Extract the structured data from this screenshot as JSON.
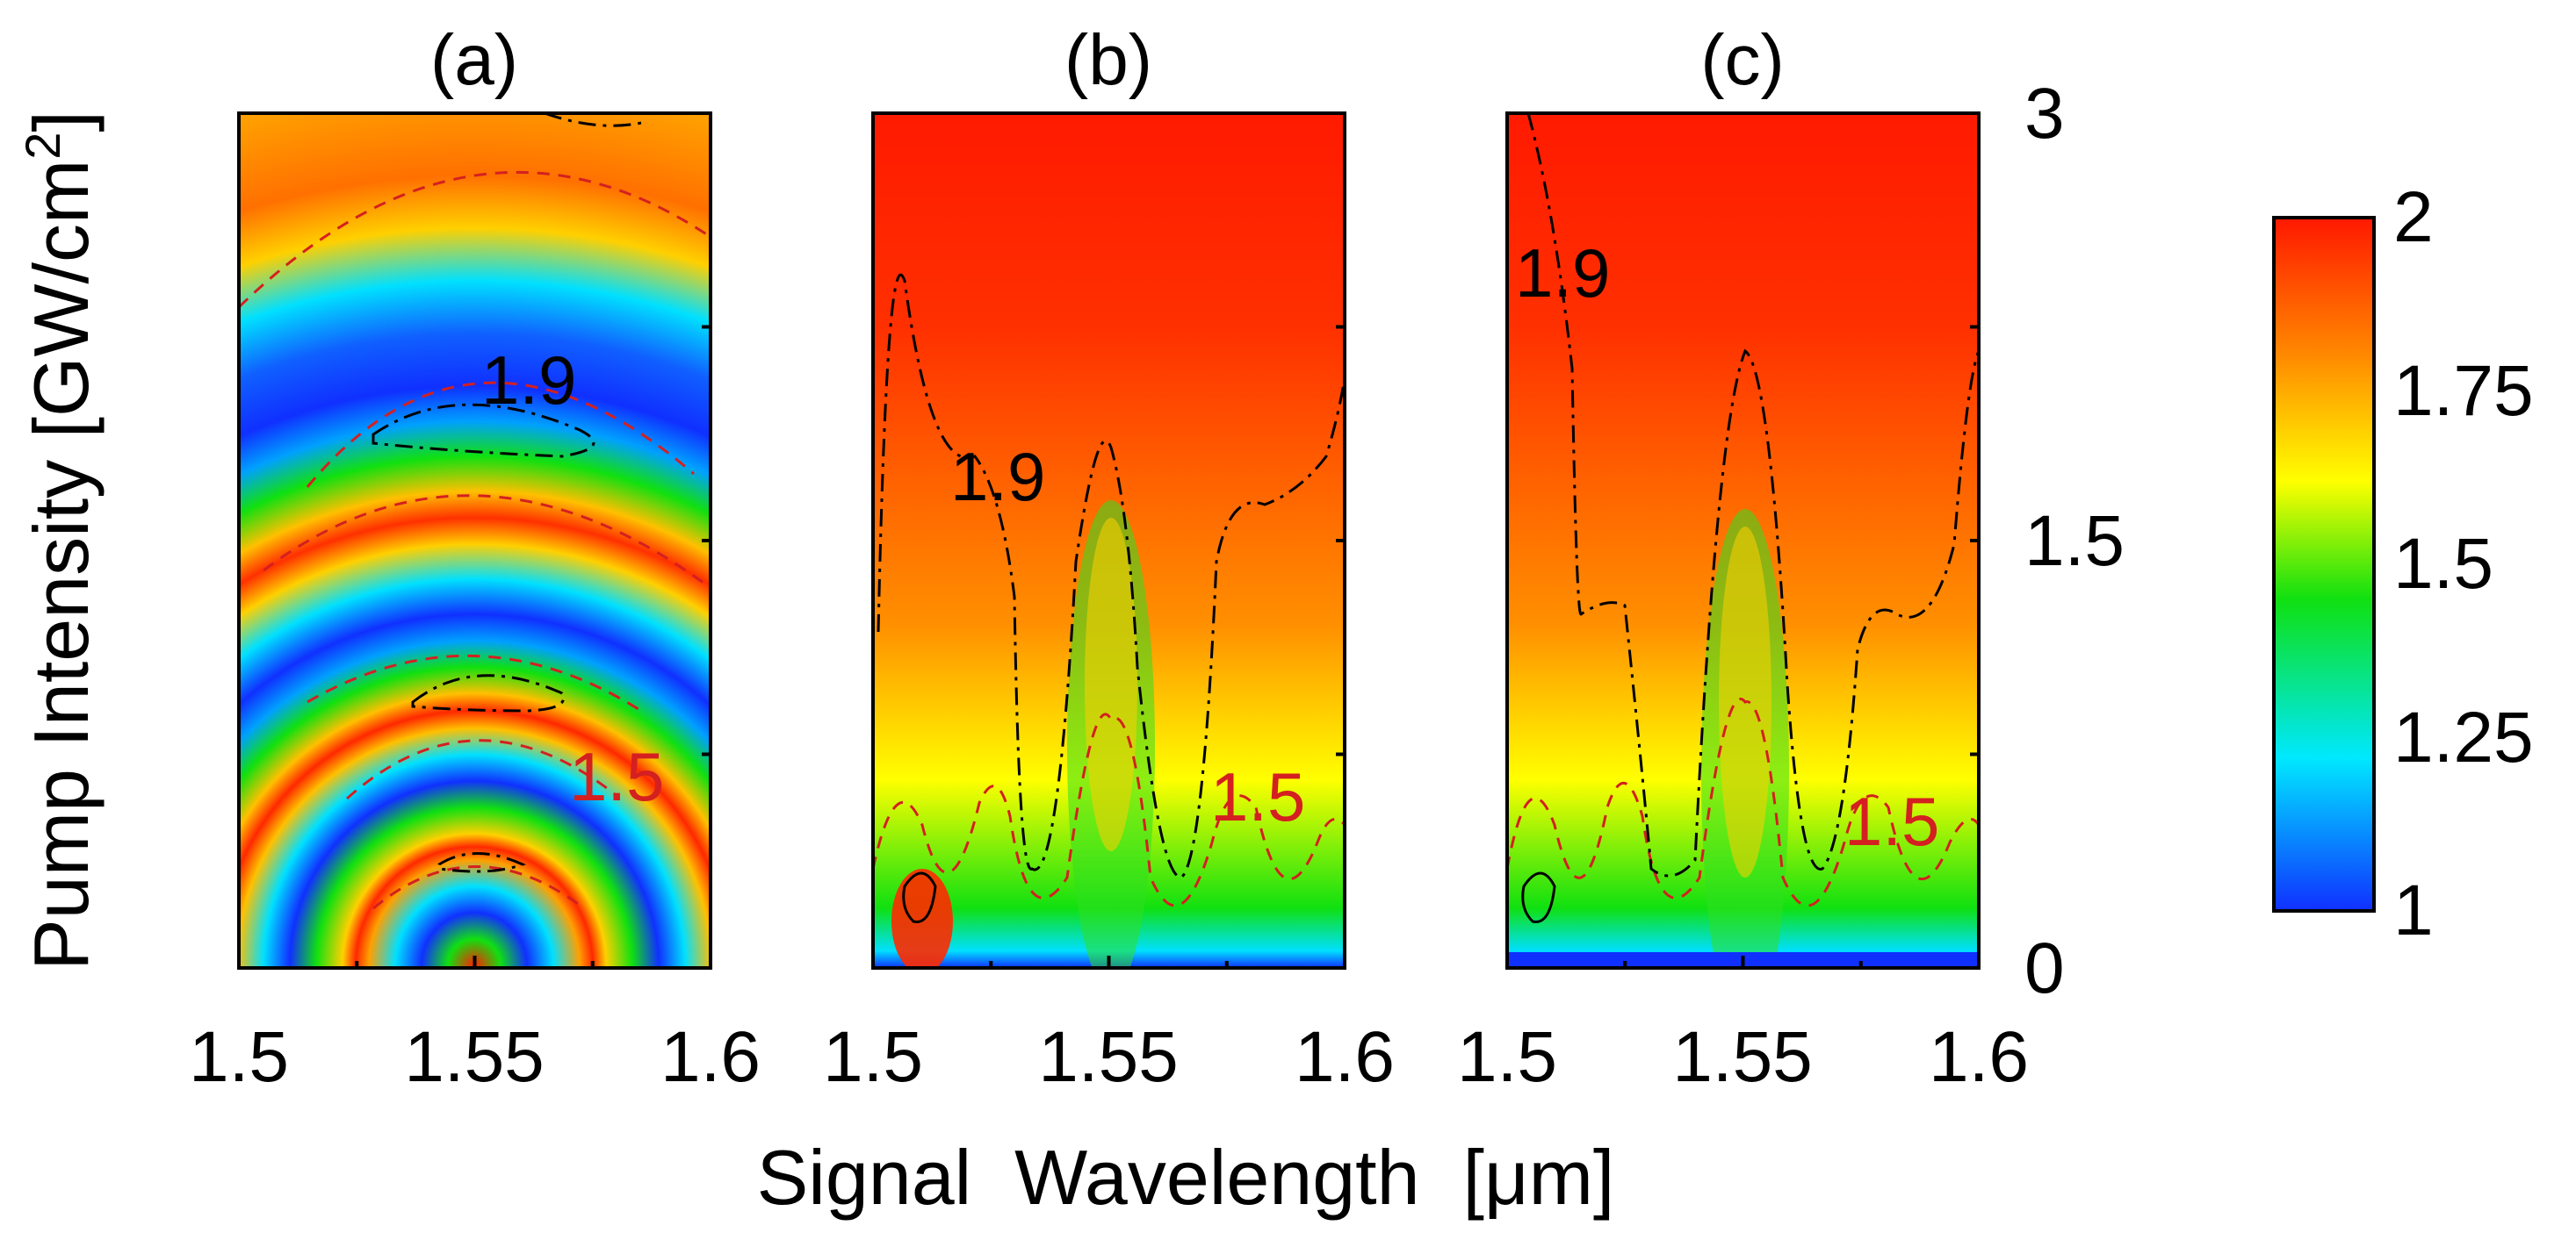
{
  "chart_data": [
    {
      "type": "heatmap",
      "title": "(a)",
      "xlabel": "Signal  Wavelength  [μm]",
      "ylabel": "Pump Intensity [GW/cm²]",
      "x_range": [
        1.5,
        1.6
      ],
      "y_range": [
        0,
        3
      ],
      "x_ticks": [
        "1.5",
        "1.55",
        "1.6"
      ],
      "y_ticks": [],
      "contours": [
        {
          "level": 1.5,
          "style": "dashed",
          "color": "#d42020",
          "label": "1.5"
        },
        {
          "level": 1.9,
          "style": "dash-dot",
          "color": "#000000",
          "label": "1.9"
        }
      ],
      "description_values": {
        "z_min": 1.0,
        "z_max": 2.0
      }
    },
    {
      "type": "heatmap",
      "title": "(b)",
      "x_range": [
        1.5,
        1.6
      ],
      "y_range": [
        0,
        3
      ],
      "x_ticks": [
        "1.5",
        "1.55",
        "1.6"
      ],
      "contours": [
        {
          "level": 1.5,
          "style": "dashed",
          "color": "#d42020",
          "label": "1.5"
        },
        {
          "level": 1.9,
          "style": "dash-dot",
          "color": "#000000",
          "label": "1.9"
        }
      ]
    },
    {
      "type": "heatmap",
      "title": "(c)",
      "x_range": [
        1.5,
        1.6
      ],
      "y_range": [
        0,
        3
      ],
      "x_ticks": [
        "1.5",
        "1.55",
        "1.6"
      ],
      "y_ticks": [
        "0",
        "1.5",
        "3"
      ],
      "contours": [
        {
          "level": 1.5,
          "style": "dashed",
          "color": "#d42020",
          "label": "1.5"
        },
        {
          "level": 1.9,
          "style": "dash-dot",
          "color": "#000000",
          "label": "1.9"
        }
      ]
    }
  ],
  "colorbar": {
    "min": 1,
    "max": 2,
    "ticks": [
      "2",
      "1.75",
      "1.5",
      "1.25",
      "1"
    ],
    "colors": [
      "#1030ff",
      "#00e8ff",
      "#10e010",
      "#ffff00",
      "#ff7000",
      "#ff1800"
    ]
  },
  "labels": {
    "title_a": "(a)",
    "title_b": "(b)",
    "title_c": "(c)",
    "xlabel": "Signal  Wavelength  [μm]",
    "ylabel": "Pump Intensity [GW/cm",
    "ylabel_sup": "2",
    "ylabel_end": "]",
    "contour_19": "1.9",
    "contour_15": "1.5"
  }
}
